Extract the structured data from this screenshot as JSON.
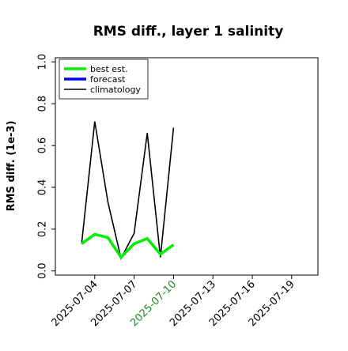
{
  "chart_data": {
    "type": "line",
    "title": "RMS diff., layer 1 salinity",
    "xlabel": "",
    "ylabel": "RMS diff. (1e-3)",
    "ylim": [
      -0.02,
      1.02
    ],
    "xlim": [
      "2025-07-01",
      "2025-07-21"
    ],
    "yticks": [
      0.0,
      0.2,
      0.4,
      0.6,
      0.8,
      1.0
    ],
    "ytick_labels": [
      "0.0",
      "0.2",
      "0.4",
      "0.6",
      "0.8",
      "1.0"
    ],
    "xticks": [
      "2025-07-04",
      "2025-07-07",
      "2025-07-10",
      "2025-07-13",
      "2025-07-16",
      "2025-07-19"
    ],
    "xtick_labels": [
      "2025-07-04",
      "2025-07-07",
      "2025-07-10",
      "2025-07-13",
      "2025-07-16",
      "2025-07-19"
    ],
    "highlight_tick": "2025-07-10",
    "highlight_color": "#228b22",
    "legend_position": "top-left",
    "grid": false,
    "series": [
      {
        "name": "best est.",
        "color": "#00ee00",
        "x": [
          "2025-07-03",
          "2025-07-04",
          "2025-07-05",
          "2025-07-06",
          "2025-07-07",
          "2025-07-08",
          "2025-07-09",
          "2025-07-10"
        ],
        "values": [
          0.13,
          0.175,
          0.16,
          0.065,
          0.13,
          0.155,
          0.08,
          0.125
        ]
      },
      {
        "name": "forecast",
        "color": "#0000ff",
        "x": [],
        "values": []
      },
      {
        "name": "climatology",
        "color": "#000000",
        "x": [
          "2025-07-03",
          "2025-07-04",
          "2025-07-05",
          "2025-07-06",
          "2025-07-07",
          "2025-07-08",
          "2025-07-09",
          "2025-07-10"
        ],
        "values": [
          0.13,
          0.715,
          0.33,
          0.06,
          0.18,
          0.66,
          0.065,
          0.685
        ]
      }
    ]
  }
}
